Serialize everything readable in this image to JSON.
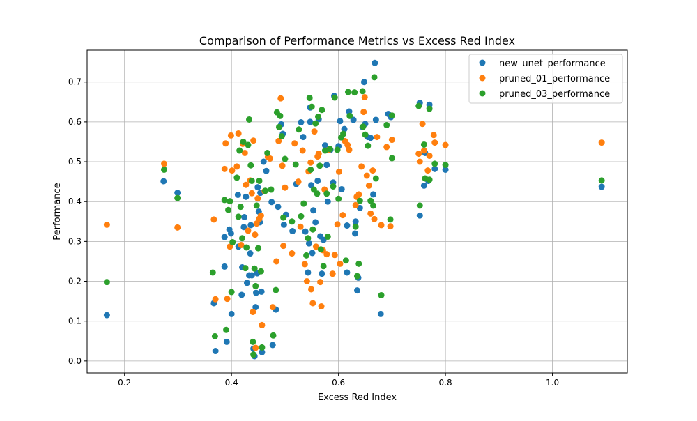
{
  "chart_data": {
    "type": "scatter",
    "title": "Comparison of Performance Metrics vs Excess Red Index",
    "xlabel": "Excess Red Index",
    "ylabel": "Performance",
    "xlim": [
      0.13,
      1.14
    ],
    "ylim": [
      -0.03,
      0.78
    ],
    "xticks": [
      0.2,
      0.4,
      0.6,
      0.8,
      1.0
    ],
    "xtick_labels": [
      "0.2",
      "0.4",
      "0.6",
      "0.8",
      "1.0"
    ],
    "yticks": [
      0.0,
      0.1,
      0.2,
      0.3,
      0.4,
      0.5,
      0.6,
      0.7
    ],
    "ytick_labels": [
      "0.0",
      "0.1",
      "0.2",
      "0.3",
      "0.4",
      "0.5",
      "0.6",
      "0.7"
    ],
    "grid": true,
    "legend_position": "top-right",
    "series": [
      {
        "name": "new_unet_performance",
        "color": "#1f77b4",
        "points": [
          [
            0.167,
            0.115
          ],
          [
            0.273,
            0.451
          ],
          [
            0.299,
            0.422
          ],
          [
            0.367,
            0.145
          ],
          [
            0.37,
            0.025
          ],
          [
            0.387,
            0.237
          ],
          [
            0.387,
            0.311
          ],
          [
            0.391,
            0.048
          ],
          [
            0.396,
            0.33
          ],
          [
            0.4,
            0.118
          ],
          [
            0.399,
            0.32
          ],
          [
            0.412,
            0.417
          ],
          [
            0.413,
            0.287
          ],
          [
            0.419,
            0.166
          ],
          [
            0.42,
            0.235
          ],
          [
            0.423,
            0.336
          ],
          [
            0.424,
            0.361
          ],
          [
            0.427,
            0.412
          ],
          [
            0.429,
            0.196
          ],
          [
            0.433,
            0.215
          ],
          [
            0.435,
            0.27
          ],
          [
            0.436,
            0.341
          ],
          [
            0.438,
            0.215
          ],
          [
            0.441,
            0.031
          ],
          [
            0.443,
            0.012
          ],
          [
            0.445,
            0.135
          ],
          [
            0.446,
            0.171
          ],
          [
            0.448,
            0.22
          ],
          [
            0.449,
            0.436
          ],
          [
            0.451,
            0.375
          ],
          [
            0.453,
            0.348
          ],
          [
            0.454,
            0.422
          ],
          [
            0.456,
            0.174
          ],
          [
            0.457,
            0.022
          ],
          [
            0.46,
            0.5
          ],
          [
            0.465,
            0.477
          ],
          [
            0.475,
            0.399
          ],
          [
            0.477,
            0.04
          ],
          [
            0.483,
            0.129
          ],
          [
            0.487,
            0.387
          ],
          [
            0.493,
            0.594
          ],
          [
            0.496,
            0.57
          ],
          [
            0.498,
            0.342
          ],
          [
            0.502,
            0.367
          ],
          [
            0.514,
            0.326
          ],
          [
            0.521,
            0.444
          ],
          [
            0.53,
            0.599
          ],
          [
            0.534,
            0.562
          ],
          [
            0.538,
            0.325
          ],
          [
            0.543,
            0.222
          ],
          [
            0.545,
            0.295
          ],
          [
            0.547,
            0.6
          ],
          [
            0.547,
            0.636
          ],
          [
            0.549,
            0.441
          ],
          [
            0.551,
            0.271
          ],
          [
            0.553,
            0.378
          ],
          [
            0.557,
            0.348
          ],
          [
            0.561,
            0.452
          ],
          [
            0.563,
            0.607
          ],
          [
            0.566,
            0.313
          ],
          [
            0.569,
            0.219
          ],
          [
            0.572,
            0.304
          ],
          [
            0.575,
            0.541
          ],
          [
            0.578,
            0.492
          ],
          [
            0.58,
            0.4
          ],
          [
            0.585,
            0.53
          ],
          [
            0.59,
            0.448
          ],
          [
            0.592,
            0.665
          ],
          [
            0.6,
            0.539
          ],
          [
            0.603,
            0.602
          ],
          [
            0.606,
            0.431
          ],
          [
            0.611,
            0.582
          ],
          [
            0.616,
            0.34
          ],
          [
            0.616,
            0.222
          ],
          [
            0.62,
            0.626
          ],
          [
            0.628,
            0.605
          ],
          [
            0.631,
            0.32
          ],
          [
            0.632,
            0.35
          ],
          [
            0.635,
            0.177
          ],
          [
            0.637,
            0.209
          ],
          [
            0.64,
            0.384
          ],
          [
            0.645,
            0.587
          ],
          [
            0.648,
            0.7
          ],
          [
            0.65,
            0.595
          ],
          [
            0.655,
            0.562
          ],
          [
            0.66,
            0.56
          ],
          [
            0.665,
            0.418
          ],
          [
            0.668,
            0.748
          ],
          [
            0.67,
            0.605
          ],
          [
            0.679,
            0.118
          ],
          [
            0.693,
            0.62
          ],
          [
            0.698,
            0.612
          ],
          [
            0.752,
            0.648
          ],
          [
            0.752,
            0.365
          ],
          [
            0.76,
            0.44
          ],
          [
            0.762,
            0.522
          ],
          [
            0.768,
            0.452
          ],
          [
            0.77,
            0.643
          ],
          [
            0.78,
            0.482
          ],
          [
            0.8,
            0.48
          ],
          [
            1.092,
            0.437
          ]
        ]
      },
      {
        "name": "pruned_01_performance",
        "color": "#ff7f0e",
        "points": [
          [
            0.167,
            0.342
          ],
          [
            0.274,
            0.495
          ],
          [
            0.299,
            0.335
          ],
          [
            0.367,
            0.355
          ],
          [
            0.37,
            0.155
          ],
          [
            0.387,
            0.482
          ],
          [
            0.389,
            0.546
          ],
          [
            0.392,
            0.156
          ],
          [
            0.397,
            0.287
          ],
          [
            0.399,
            0.566
          ],
          [
            0.401,
            0.478
          ],
          [
            0.41,
            0.488
          ],
          [
            0.413,
            0.571
          ],
          [
            0.418,
            0.291
          ],
          [
            0.421,
            0.545
          ],
          [
            0.425,
            0.522
          ],
          [
            0.427,
            0.442
          ],
          [
            0.431,
            0.327
          ],
          [
            0.435,
            0.453
          ],
          [
            0.438,
            0.421
          ],
          [
            0.44,
            0.123
          ],
          [
            0.441,
            0.553
          ],
          [
            0.444,
            0.317
          ],
          [
            0.445,
            0.033
          ],
          [
            0.447,
            0.345
          ],
          [
            0.449,
            0.408
          ],
          [
            0.452,
            0.357
          ],
          [
            0.455,
            0.365
          ],
          [
            0.457,
            0.09
          ],
          [
            0.462,
            0.426
          ],
          [
            0.468,
            0.512
          ],
          [
            0.472,
            0.508
          ],
          [
            0.477,
            0.135
          ],
          [
            0.484,
            0.25
          ],
          [
            0.488,
            0.552
          ],
          [
            0.492,
            0.659
          ],
          [
            0.495,
            0.49
          ],
          [
            0.497,
            0.289
          ],
          [
            0.5,
            0.435
          ],
          [
            0.513,
            0.27
          ],
          [
            0.518,
            0.546
          ],
          [
            0.525,
            0.45
          ],
          [
            0.529,
            0.337
          ],
          [
            0.533,
            0.528
          ],
          [
            0.537,
            0.243
          ],
          [
            0.541,
            0.2
          ],
          [
            0.544,
            0.476
          ],
          [
            0.548,
            0.498
          ],
          [
            0.549,
            0.18
          ],
          [
            0.552,
            0.145
          ],
          [
            0.555,
            0.576
          ],
          [
            0.558,
            0.287
          ],
          [
            0.561,
            0.513
          ],
          [
            0.563,
            0.52
          ],
          [
            0.566,
            0.198
          ],
          [
            0.568,
            0.137
          ],
          [
            0.571,
            0.278
          ],
          [
            0.574,
            0.43
          ],
          [
            0.578,
            0.268
          ],
          [
            0.582,
            0.53
          ],
          [
            0.589,
            0.219
          ],
          [
            0.593,
            0.266
          ],
          [
            0.598,
            0.343
          ],
          [
            0.601,
            0.475
          ],
          [
            0.603,
            0.244
          ],
          [
            0.608,
            0.366
          ],
          [
            0.612,
            0.552
          ],
          [
            0.617,
            0.542
          ],
          [
            0.62,
            0.53
          ],
          [
            0.632,
            0.391
          ],
          [
            0.634,
            0.412
          ],
          [
            0.638,
            0.418
          ],
          [
            0.643,
            0.488
          ],
          [
            0.647,
            0.625
          ],
          [
            0.649,
            0.662
          ],
          [
            0.653,
            0.465
          ],
          [
            0.657,
            0.44
          ],
          [
            0.66,
            0.37
          ],
          [
            0.664,
            0.478
          ],
          [
            0.667,
            0.356
          ],
          [
            0.672,
            0.562
          ],
          [
            0.68,
            0.341
          ],
          [
            0.69,
            0.537
          ],
          [
            0.697,
            0.338
          ],
          [
            0.7,
            0.555
          ],
          [
            0.75,
            0.52
          ],
          [
            0.752,
            0.5
          ],
          [
            0.757,
            0.595
          ],
          [
            0.76,
            0.528
          ],
          [
            0.767,
            0.478
          ],
          [
            0.77,
            0.515
          ],
          [
            0.778,
            0.567
          ],
          [
            0.78,
            0.548
          ],
          [
            0.8,
            0.542
          ],
          [
            1.092,
            0.548
          ]
        ]
      },
      {
        "name": "pruned_03_performance",
        "color": "#2ca02c",
        "points": [
          [
            0.167,
            0.198
          ],
          [
            0.274,
            0.48
          ],
          [
            0.299,
            0.409
          ],
          [
            0.365,
            0.222
          ],
          [
            0.369,
            0.062
          ],
          [
            0.387,
            0.404
          ],
          [
            0.39,
            0.078
          ],
          [
            0.394,
            0.379
          ],
          [
            0.397,
            0.401
          ],
          [
            0.4,
            0.173
          ],
          [
            0.402,
            0.298
          ],
          [
            0.41,
            0.46
          ],
          [
            0.413,
            0.362
          ],
          [
            0.415,
            0.528
          ],
          [
            0.417,
            0.387
          ],
          [
            0.42,
            0.308
          ],
          [
            0.422,
            0.55
          ],
          [
            0.426,
            0.233
          ],
          [
            0.428,
            0.285
          ],
          [
            0.431,
            0.542
          ],
          [
            0.433,
            0.606
          ],
          [
            0.436,
            0.491
          ],
          [
            0.438,
            0.452
          ],
          [
            0.44,
            0.048
          ],
          [
            0.441,
            0.016
          ],
          [
            0.443,
            0.232
          ],
          [
            0.445,
            0.188
          ],
          [
            0.447,
            0.39
          ],
          [
            0.45,
            0.283
          ],
          [
            0.452,
            0.452
          ],
          [
            0.455,
            0.225
          ],
          [
            0.457,
            0.034
          ],
          [
            0.463,
            0.427
          ],
          [
            0.467,
            0.522
          ],
          [
            0.474,
            0.43
          ],
          [
            0.478,
            0.064
          ],
          [
            0.483,
            0.178
          ],
          [
            0.485,
            0.624
          ],
          [
            0.489,
            0.587
          ],
          [
            0.491,
            0.615
          ],
          [
            0.494,
            0.564
          ],
          [
            0.497,
            0.36
          ],
          [
            0.5,
            0.507
          ],
          [
            0.513,
            0.35
          ],
          [
            0.52,
            0.493
          ],
          [
            0.526,
            0.581
          ],
          [
            0.53,
            0.363
          ],
          [
            0.535,
            0.395
          ],
          [
            0.54,
            0.265
          ],
          [
            0.543,
            0.308
          ],
          [
            0.546,
            0.66
          ],
          [
            0.548,
            0.48
          ],
          [
            0.55,
            0.638
          ],
          [
            0.552,
            0.33
          ],
          [
            0.554,
            0.43
          ],
          [
            0.557,
            0.596
          ],
          [
            0.56,
            0.42
          ],
          [
            0.562,
            0.613
          ],
          [
            0.565,
            0.49
          ],
          [
            0.567,
            0.28
          ],
          [
            0.569,
            0.63
          ],
          [
            0.572,
            0.238
          ],
          [
            0.575,
            0.528
          ],
          [
            0.578,
            0.42
          ],
          [
            0.58,
            0.312
          ],
          [
            0.584,
            0.532
          ],
          [
            0.59,
            0.438
          ],
          [
            0.593,
            0.661
          ],
          [
            0.598,
            0.53
          ],
          [
            0.6,
            0.407
          ],
          [
            0.605,
            0.561
          ],
          [
            0.609,
            0.57
          ],
          [
            0.614,
            0.252
          ],
          [
            0.618,
            0.675
          ],
          [
            0.621,
            0.615
          ],
          [
            0.63,
            0.674
          ],
          [
            0.632,
            0.337
          ],
          [
            0.635,
            0.213
          ],
          [
            0.638,
            0.244
          ],
          [
            0.64,
            0.402
          ],
          [
            0.645,
            0.677
          ],
          [
            0.646,
            0.588
          ],
          [
            0.65,
            0.568
          ],
          [
            0.655,
            0.54
          ],
          [
            0.66,
            0.402
          ],
          [
            0.665,
            0.39
          ],
          [
            0.667,
            0.712
          ],
          [
            0.67,
            0.458
          ],
          [
            0.68,
            0.165
          ],
          [
            0.69,
            0.592
          ],
          [
            0.697,
            0.355
          ],
          [
            0.7,
            0.509
          ],
          [
            0.7,
            0.616
          ],
          [
            0.75,
            0.64
          ],
          [
            0.752,
            0.39
          ],
          [
            0.76,
            0.543
          ],
          [
            0.762,
            0.458
          ],
          [
            0.77,
            0.455
          ],
          [
            0.77,
            0.633
          ],
          [
            0.78,
            0.495
          ],
          [
            0.8,
            0.492
          ],
          [
            1.092,
            0.453
          ]
        ]
      }
    ]
  }
}
